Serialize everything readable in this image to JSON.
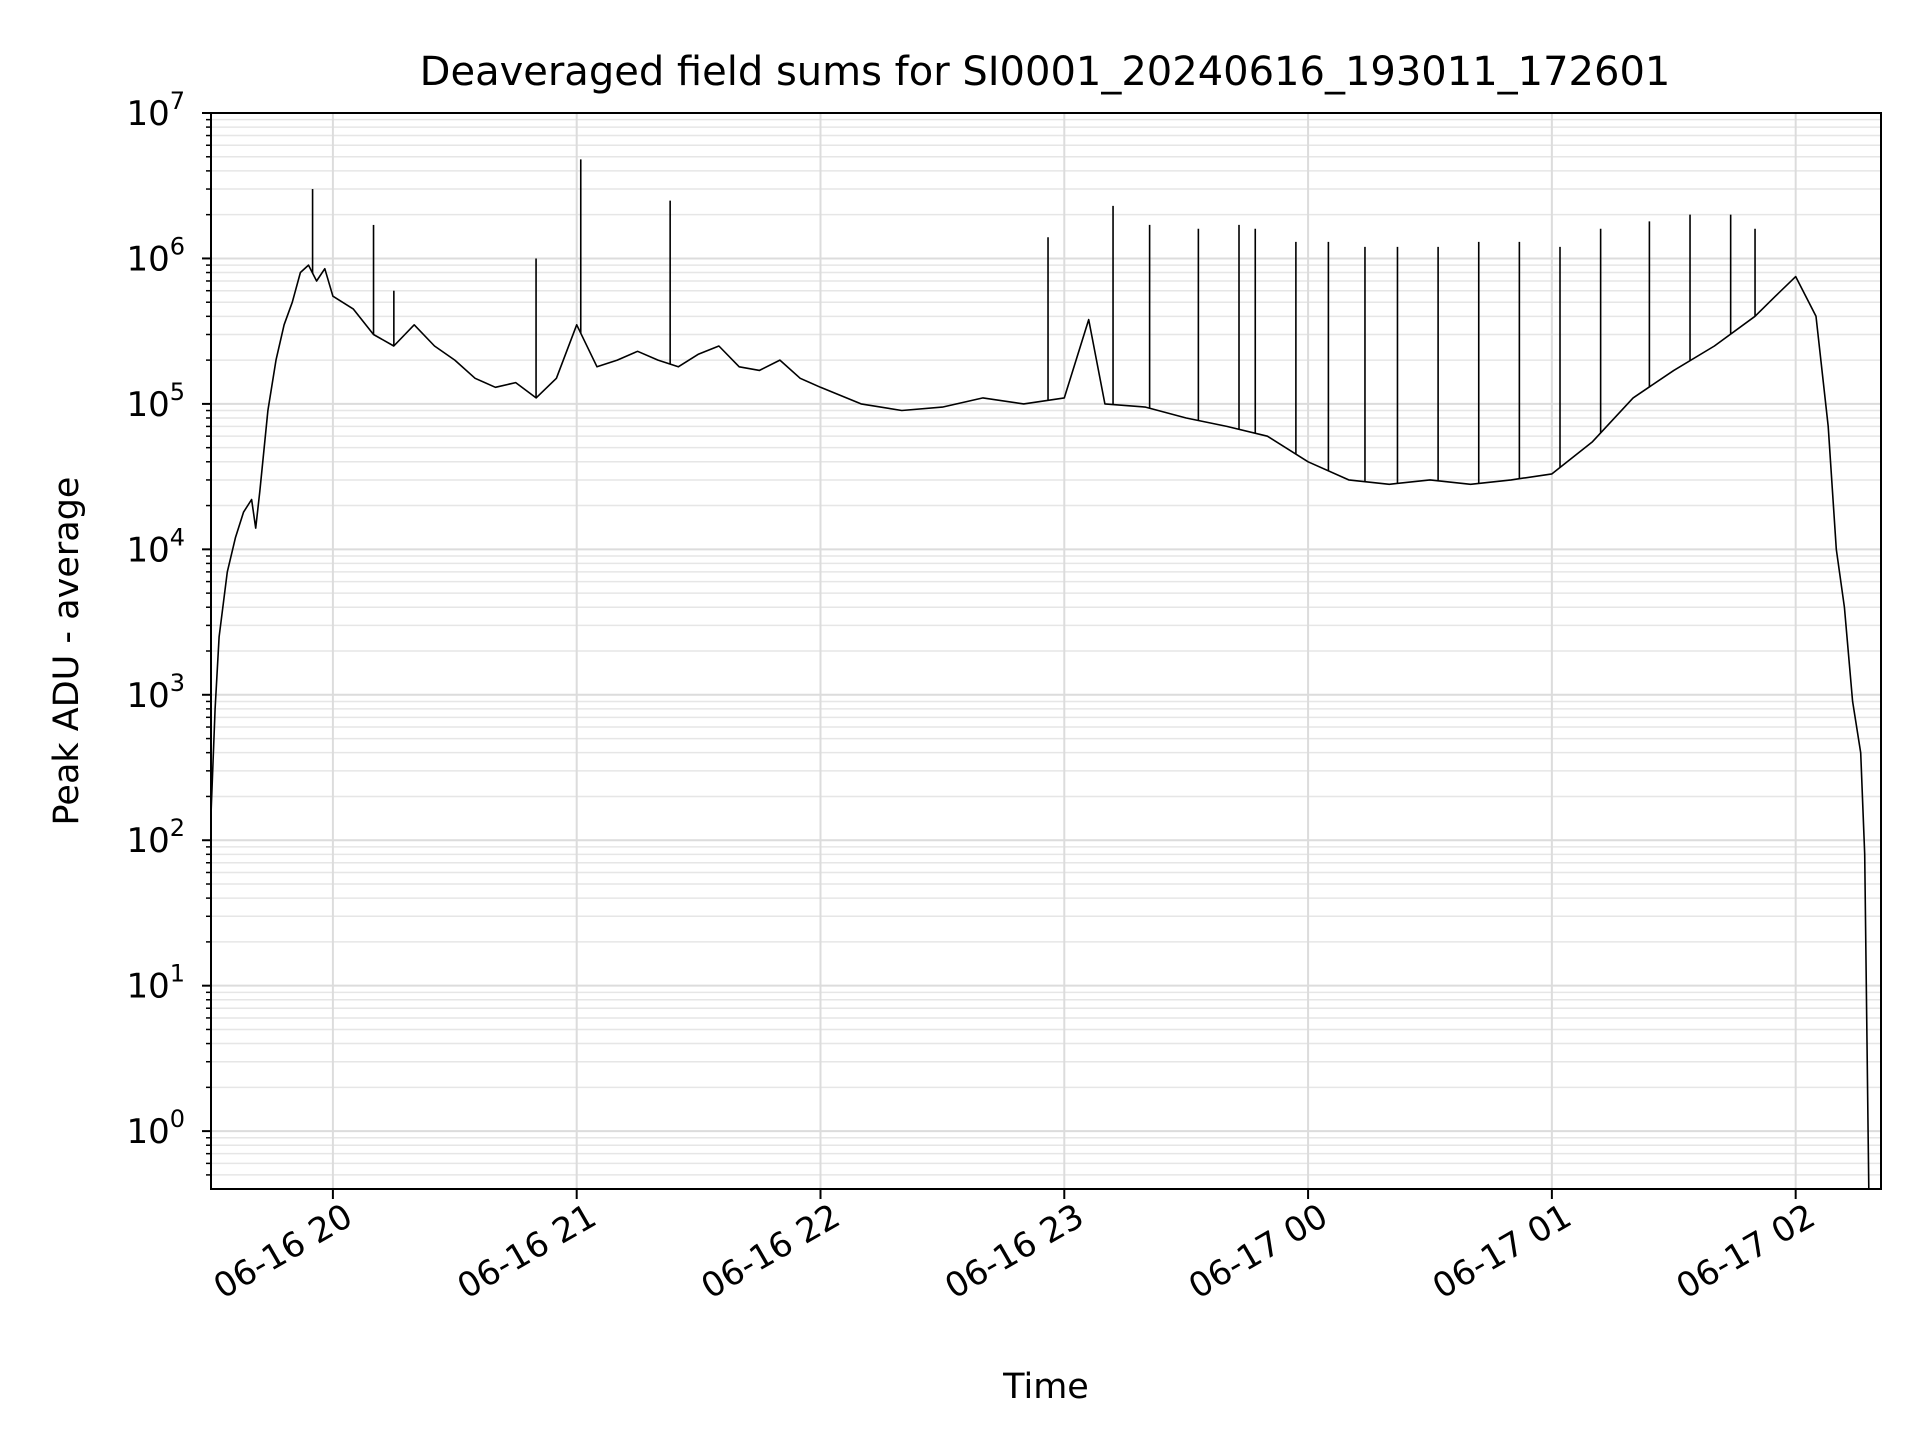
{
  "chart_data": {
    "type": "line",
    "title": "Deaveraged field sums for SI0001_20240616_193011_172601",
    "xlabel": "Time",
    "ylabel": "Peak ADU - average",
    "yscale": "log",
    "ylim": [
      0.4,
      10000000
    ],
    "xlim": [
      "2024-06-16 19:30",
      "2024-06-17 02:21"
    ],
    "grid": true,
    "grid_minor": true,
    "line_color": "#000000",
    "grid_color": "#e6e6e6",
    "x_ticks": [
      "06-16 20",
      "06-16 21",
      "06-16 22",
      "06-16 23",
      "06-17 00",
      "06-17 01",
      "06-17 02"
    ],
    "x_tick_times": [
      "2024-06-16 20:00",
      "2024-06-16 21:00",
      "2024-06-16 22:00",
      "2024-06-16 23:00",
      "2024-06-17 00:00",
      "2024-06-17 01:00",
      "2024-06-17 02:00"
    ],
    "y_ticks": [
      {
        "base": "10",
        "exp": "0",
        "value": 1
      },
      {
        "base": "10",
        "exp": "1",
        "value": 10
      },
      {
        "base": "10",
        "exp": "2",
        "value": 100
      },
      {
        "base": "10",
        "exp": "3",
        "value": 1000
      },
      {
        "base": "10",
        "exp": "4",
        "value": 10000
      },
      {
        "base": "10",
        "exp": "5",
        "value": 100000
      },
      {
        "base": "10",
        "exp": "6",
        "value": 1000000
      },
      {
        "base": "10",
        "exp": "7",
        "value": 10000000
      }
    ],
    "series": [
      {
        "points": [
          [
            "2024-06-16 19:30",
            150
          ],
          [
            "2024-06-16 19:31",
            800
          ],
          [
            "2024-06-16 19:32",
            2500
          ],
          [
            "2024-06-16 19:34",
            7000
          ],
          [
            "2024-06-16 19:36",
            12000
          ],
          [
            "2024-06-16 19:38",
            18000
          ],
          [
            "2024-06-16 19:40",
            22000
          ],
          [
            "2024-06-16 19:41",
            14000
          ],
          [
            "2024-06-16 19:42",
            25000
          ],
          [
            "2024-06-16 19:44",
            90000
          ],
          [
            "2024-06-16 19:46",
            200000
          ],
          [
            "2024-06-16 19:48",
            350000
          ],
          [
            "2024-06-16 19:50",
            500000
          ],
          [
            "2024-06-16 19:52",
            800000
          ],
          [
            "2024-06-16 19:54",
            900000
          ],
          [
            "2024-06-16 19:56",
            700000
          ],
          [
            "2024-06-16 19:58",
            850000
          ],
          [
            "2024-06-16 20:00",
            550000
          ],
          [
            "2024-06-16 20:05",
            450000
          ],
          [
            "2024-06-16 20:10",
            300000
          ],
          [
            "2024-06-16 20:15",
            250000
          ],
          [
            "2024-06-16 20:20",
            350000
          ],
          [
            "2024-06-16 20:25",
            250000
          ],
          [
            "2024-06-16 20:30",
            200000
          ],
          [
            "2024-06-16 20:35",
            150000
          ],
          [
            "2024-06-16 20:40",
            130000
          ],
          [
            "2024-06-16 20:45",
            140000
          ],
          [
            "2024-06-16 20:50",
            110000
          ],
          [
            "2024-06-16 20:55",
            150000
          ],
          [
            "2024-06-16 21:00",
            350000
          ],
          [
            "2024-06-16 21:05",
            180000
          ],
          [
            "2024-06-16 21:10",
            200000
          ],
          [
            "2024-06-16 21:15",
            230000
          ],
          [
            "2024-06-16 21:20",
            200000
          ],
          [
            "2024-06-16 21:25",
            180000
          ],
          [
            "2024-06-16 21:30",
            220000
          ],
          [
            "2024-06-16 21:35",
            250000
          ],
          [
            "2024-06-16 21:40",
            180000
          ],
          [
            "2024-06-16 21:45",
            170000
          ],
          [
            "2024-06-16 21:50",
            200000
          ],
          [
            "2024-06-16 21:55",
            150000
          ],
          [
            "2024-06-16 22:00",
            130000
          ],
          [
            "2024-06-16 22:10",
            100000
          ],
          [
            "2024-06-16 22:20",
            90000
          ],
          [
            "2024-06-16 22:30",
            95000
          ],
          [
            "2024-06-16 22:40",
            110000
          ],
          [
            "2024-06-16 22:50",
            100000
          ],
          [
            "2024-06-16 23:00",
            110000
          ],
          [
            "2024-06-16 23:06",
            380000
          ],
          [
            "2024-06-16 23:10",
            100000
          ],
          [
            "2024-06-16 23:20",
            95000
          ],
          [
            "2024-06-16 23:30",
            80000
          ],
          [
            "2024-06-16 23:40",
            70000
          ],
          [
            "2024-06-16 23:50",
            60000
          ],
          [
            "2024-06-17 00:00",
            40000
          ],
          [
            "2024-06-17 00:10",
            30000
          ],
          [
            "2024-06-17 00:20",
            28000
          ],
          [
            "2024-06-17 00:30",
            30000
          ],
          [
            "2024-06-17 00:40",
            28000
          ],
          [
            "2024-06-17 00:50",
            30000
          ],
          [
            "2024-06-17 01:00",
            33000
          ],
          [
            "2024-06-17 01:10",
            55000
          ],
          [
            "2024-06-17 01:20",
            110000
          ],
          [
            "2024-06-17 01:30",
            170000
          ],
          [
            "2024-06-17 01:40",
            250000
          ],
          [
            "2024-06-17 01:50",
            400000
          ],
          [
            "2024-06-17 01:55",
            550000
          ],
          [
            "2024-06-17 02:00",
            750000
          ],
          [
            "2024-06-17 02:05",
            400000
          ],
          [
            "2024-06-17 02:08",
            70000
          ],
          [
            "2024-06-17 02:10",
            10000
          ],
          [
            "2024-06-17 02:12",
            4000
          ],
          [
            "2024-06-17 02:14",
            900
          ],
          [
            "2024-06-17 02:16",
            400
          ],
          [
            "2024-06-17 02:17",
            80
          ],
          [
            "2024-06-17 02:18",
            0.4
          ]
        ]
      }
    ],
    "spikes": [
      [
        "2024-06-16 19:55",
        3000000
      ],
      [
        "2024-06-16 20:10",
        1700000
      ],
      [
        "2024-06-16 20:15",
        600000
      ],
      [
        "2024-06-16 20:50",
        1000000
      ],
      [
        "2024-06-16 21:01",
        4800000
      ],
      [
        "2024-06-16 21:23",
        2500000
      ],
      [
        "2024-06-16 22:56",
        1400000
      ],
      [
        "2024-06-16 23:12",
        2300000
      ],
      [
        "2024-06-16 23:21",
        1700000
      ],
      [
        "2024-06-16 23:33",
        1600000
      ],
      [
        "2024-06-16 23:43",
        1700000
      ],
      [
        "2024-06-16 23:47",
        1600000
      ],
      [
        "2024-06-16 23:57",
        1300000
      ],
      [
        "2024-06-17 00:05",
        1300000
      ],
      [
        "2024-06-17 00:14",
        1200000
      ],
      [
        "2024-06-17 00:22",
        1200000
      ],
      [
        "2024-06-17 00:32",
        1200000
      ],
      [
        "2024-06-17 00:42",
        1300000
      ],
      [
        "2024-06-17 00:52",
        1300000
      ],
      [
        "2024-06-17 01:02",
        1200000
      ],
      [
        "2024-06-17 01:12",
        1600000
      ],
      [
        "2024-06-17 01:24",
        1800000
      ],
      [
        "2024-06-17 01:34",
        2000000
      ],
      [
        "2024-06-17 01:44",
        2000000
      ],
      [
        "2024-06-17 01:50",
        1600000
      ]
    ]
  }
}
